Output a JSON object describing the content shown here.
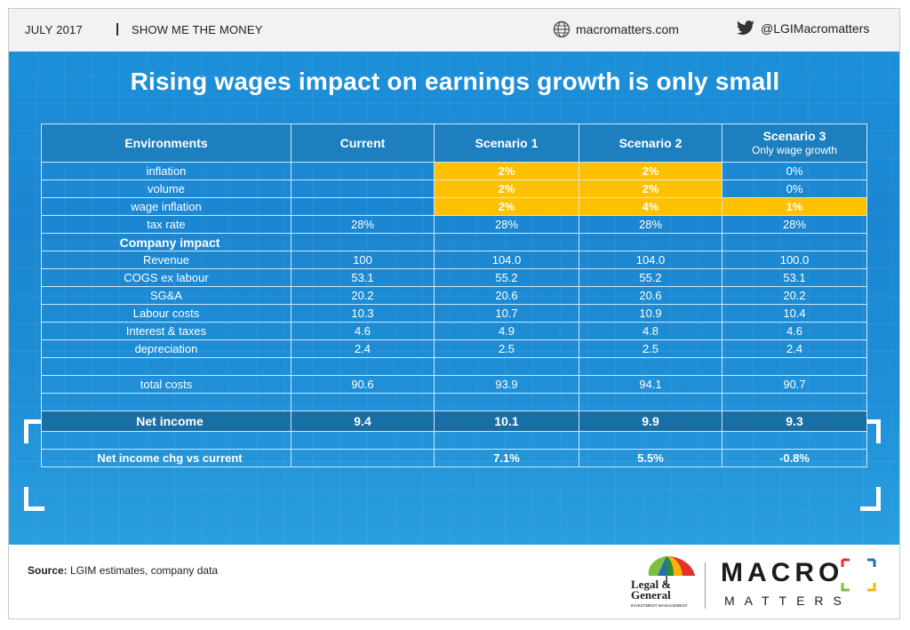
{
  "header": {
    "date": "JULY 2017",
    "separator": "|",
    "section": "SHOW ME THE MONEY",
    "website": "macromatters.com",
    "twitter": "@LGIMacromatters"
  },
  "title": "Rising wages impact on earnings growth is only small",
  "table": {
    "headers": {
      "label": "Environments",
      "current": "Current",
      "s1": "Scenario 1",
      "s2": "Scenario 2",
      "s3": "Scenario 3",
      "s3_sub": "Only wage growth"
    },
    "environments": [
      {
        "label": "inflation",
        "current": "",
        "s1": "2%",
        "s2": "2%",
        "s3": "0%"
      },
      {
        "label": "volume",
        "current": "",
        "s1": "2%",
        "s2": "2%",
        "s3": "0%"
      },
      {
        "label": "wage inflation",
        "current": "",
        "s1": "2%",
        "s2": "4%",
        "s3": "1%"
      },
      {
        "label": "tax rate",
        "current": "28%",
        "s1": "28%",
        "s2": "28%",
        "s3": "28%"
      }
    ],
    "company_impact_label": "Company impact",
    "company": [
      {
        "label": "Revenue",
        "current": "100",
        "s1": "104.0",
        "s2": "104.0",
        "s3": "100.0"
      },
      {
        "label": "COGS ex labour",
        "current": "53.1",
        "s1": "55.2",
        "s2": "55.2",
        "s3": "53.1"
      },
      {
        "label": "SG&A",
        "current": "20.2",
        "s1": "20.6",
        "s2": "20.6",
        "s3": "20.2"
      },
      {
        "label": "Labour costs",
        "current": "10.3",
        "s1": "10.7",
        "s2": "10.9",
        "s3": "10.4"
      },
      {
        "label": "Interest & taxes",
        "current": "4.6",
        "s1": "4.9",
        "s2": "4.8",
        "s3": "4.6"
      },
      {
        "label": "depreciation",
        "current": "2.4",
        "s1": "2.5",
        "s2": "2.5",
        "s3": "2.4"
      }
    ],
    "total_costs": {
      "label": "total costs",
      "current": "90.6",
      "s1": "93.9",
      "s2": "94.1",
      "s3": "90.7"
    },
    "net_income": {
      "label": "Net income",
      "current": "9.4",
      "s1": "10.1",
      "s2": "9.9",
      "s3": "9.3"
    },
    "net_income_chg": {
      "label": "Net income chg vs current",
      "current": "",
      "s1": "7.1%",
      "s2": "5.5%",
      "s3": "-0.8%"
    }
  },
  "footer": {
    "source_label": "Source:",
    "source_text": " LGIM estimates, company data",
    "lg_line1": "Legal &",
    "lg_line2": "General",
    "lg_line3": "INVESTMENT MANAGEMENT",
    "brand_macro": "MACRO",
    "brand_matters": "MATTERS"
  },
  "colors": {
    "panel_blue": "#1d8fd9",
    "header_dark": "#1e7fbf",
    "highlight_yellow": "#ffc000",
    "net_row": "#1a6ea6"
  }
}
